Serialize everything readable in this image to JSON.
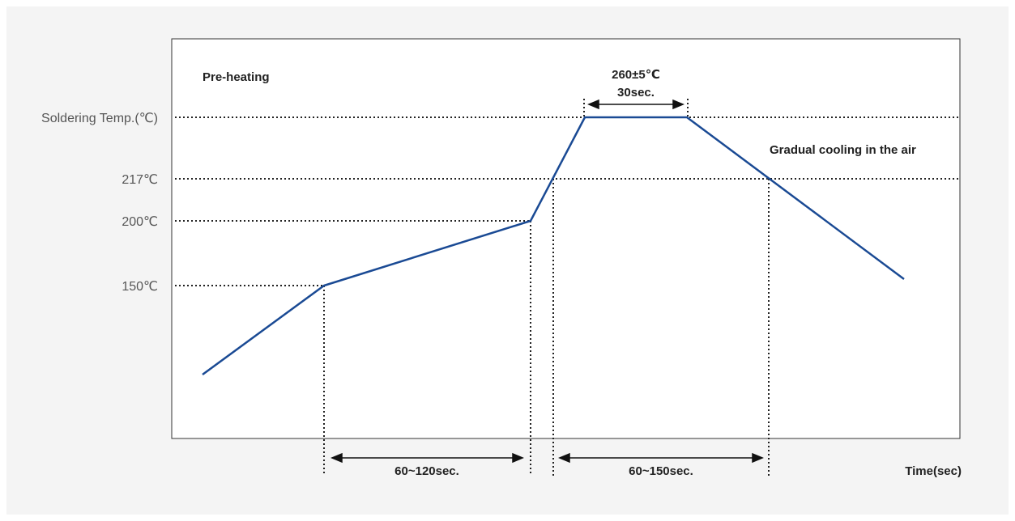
{
  "title": "",
  "y_labels": {
    "soldering": "Soldering Temp.(℃)",
    "t217": "217℃",
    "t200": "200℃",
    "t150": "150℃"
  },
  "annotations": {
    "preheating": "Pre-heating",
    "peak_temp": "260±5℃",
    "peak_time": "30sec.",
    "cooling": "Gradual cooling in the air",
    "preheat_duration": "60~120sec.",
    "reflow_duration": "60~150sec.",
    "x_axis": "Time(sec)"
  },
  "colors": {
    "profile_line": "#1a4a94",
    "dotted": "#222222",
    "frame": "#333333",
    "background": "#f4f4f4"
  }
}
